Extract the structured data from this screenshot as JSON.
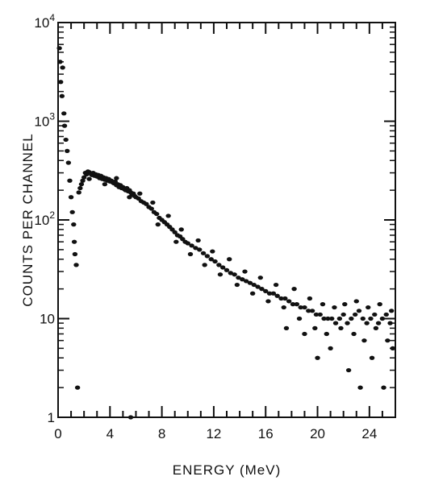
{
  "chart_data": {
    "type": "scatter",
    "title": "",
    "xlabel": "ENERGY (MeV)",
    "ylabel": "COUNTS PER CHANNEL",
    "xlim": [
      0,
      26
    ],
    "ylim": [
      1,
      10000
    ],
    "y_scale": "log",
    "grid": false,
    "legend": "none",
    "x_ticks": [
      0,
      4,
      8,
      12,
      16,
      20,
      24
    ],
    "x_tick_labels": [
      "0",
      "4",
      "8",
      "12",
      "16",
      "20",
      "24"
    ],
    "y_ticks": [
      1,
      10,
      100,
      1000,
      10000
    ],
    "y_tick_labels": [
      {
        "base": "1",
        "exp": ""
      },
      {
        "base": "10",
        "exp": ""
      },
      {
        "base": "10",
        "exp": "2"
      },
      {
        "base": "10",
        "exp": "3"
      },
      {
        "base": "10",
        "exp": "4"
      }
    ],
    "marker_color": "#111111",
    "series": [
      {
        "points": [
          [
            0.1,
            5500
          ],
          [
            0.15,
            4000
          ],
          [
            0.2,
            2500
          ],
          [
            0.3,
            1800
          ],
          [
            0.35,
            3500
          ],
          [
            0.45,
            1200
          ],
          [
            0.5,
            900
          ],
          [
            0.6,
            650
          ],
          [
            0.7,
            500
          ],
          [
            0.8,
            380
          ],
          [
            0.9,
            250
          ],
          [
            1.0,
            170
          ],
          [
            1.1,
            120
          ],
          [
            1.2,
            90
          ],
          [
            1.25,
            60
          ],
          [
            1.3,
            45
          ],
          [
            1.4,
            35
          ],
          [
            1.5,
            2
          ],
          [
            1.6,
            190
          ],
          [
            1.7,
            210
          ],
          [
            1.8,
            230
          ],
          [
            1.9,
            250
          ],
          [
            2.0,
            270
          ],
          [
            2.1,
            300
          ],
          [
            2.2,
            290
          ],
          [
            2.3,
            310
          ],
          [
            2.4,
            305
          ],
          [
            2.5,
            295
          ],
          [
            2.6,
            285
          ],
          [
            2.7,
            300
          ],
          [
            2.8,
            280
          ],
          [
            2.9,
            290
          ],
          [
            3.0,
            275
          ],
          [
            3.1,
            285
          ],
          [
            3.2,
            265
          ],
          [
            3.3,
            280
          ],
          [
            3.4,
            260
          ],
          [
            3.5,
            270
          ],
          [
            3.6,
            255
          ],
          [
            3.7,
            265
          ],
          [
            3.8,
            250
          ],
          [
            3.9,
            260
          ],
          [
            4.0,
            245
          ],
          [
            4.1,
            250
          ],
          [
            4.2,
            240
          ],
          [
            4.3,
            235
          ],
          [
            4.4,
            245
          ],
          [
            4.5,
            225
          ],
          [
            4.6,
            230
          ],
          [
            4.7,
            215
          ],
          [
            4.8,
            225
          ],
          [
            4.9,
            210
          ],
          [
            5.0,
            215
          ],
          [
            5.1,
            205
          ],
          [
            5.2,
            200
          ],
          [
            5.3,
            210
          ],
          [
            5.4,
            195
          ],
          [
            5.5,
            200
          ],
          [
            5.6,
            190
          ],
          [
            5.7,
            180
          ],
          [
            5.8,
            185
          ],
          [
            5.9,
            175
          ],
          [
            6.0,
            170
          ],
          [
            6.2,
            165
          ],
          [
            6.4,
            155
          ],
          [
            6.6,
            150
          ],
          [
            6.8,
            145
          ],
          [
            7.0,
            135
          ],
          [
            7.2,
            130
          ],
          [
            7.4,
            120
          ],
          [
            7.6,
            115
          ],
          [
            7.8,
            105
          ],
          [
            8.0,
            100
          ],
          [
            8.2,
            95
          ],
          [
            8.4,
            90
          ],
          [
            8.6,
            85
          ],
          [
            8.8,
            80
          ],
          [
            9.0,
            75
          ],
          [
            9.2,
            70
          ],
          [
            9.4,
            68
          ],
          [
            9.6,
            64
          ],
          [
            9.8,
            60
          ],
          [
            10.0,
            58
          ],
          [
            10.3,
            55
          ],
          [
            10.6,
            52
          ],
          [
            10.9,
            50
          ],
          [
            11.2,
            46
          ],
          [
            11.5,
            43
          ],
          [
            11.8,
            40
          ],
          [
            12.1,
            38
          ],
          [
            12.4,
            35
          ],
          [
            12.7,
            33
          ],
          [
            13.0,
            31
          ],
          [
            13.3,
            29
          ],
          [
            13.6,
            28
          ],
          [
            13.9,
            26
          ],
          [
            14.2,
            25
          ],
          [
            14.5,
            24
          ],
          [
            14.8,
            23
          ],
          [
            15.1,
            22
          ],
          [
            15.4,
            21
          ],
          [
            15.7,
            20
          ],
          [
            16.0,
            19
          ],
          [
            16.3,
            18
          ],
          [
            16.6,
            18
          ],
          [
            16.9,
            17
          ],
          [
            17.2,
            16
          ],
          [
            17.5,
            16
          ],
          [
            17.8,
            15
          ],
          [
            18.1,
            14
          ],
          [
            18.4,
            14
          ],
          [
            18.7,
            13
          ],
          [
            19.0,
            13
          ],
          [
            19.3,
            12
          ],
          [
            19.6,
            12
          ],
          [
            19.9,
            11
          ],
          [
            20.2,
            11
          ],
          [
            20.5,
            10
          ],
          [
            20.8,
            10
          ],
          [
            21.1,
            10
          ],
          [
            21.4,
            9
          ],
          [
            21.7,
            10
          ],
          [
            22.0,
            11
          ],
          [
            22.3,
            9
          ],
          [
            22.6,
            10
          ],
          [
            22.9,
            11
          ],
          [
            23.2,
            12
          ],
          [
            23.5,
            10
          ],
          [
            23.8,
            9
          ],
          [
            24.1,
            10
          ],
          [
            24.4,
            11
          ],
          [
            24.7,
            9
          ],
          [
            25.0,
            10
          ],
          [
            25.3,
            11
          ],
          [
            25.6,
            9
          ],
          [
            2.4,
            260
          ],
          [
            3.6,
            230
          ],
          [
            4.5,
            265
          ],
          [
            5.5,
            170
          ],
          [
            6.3,
            185
          ],
          [
            7.3,
            150
          ],
          [
            7.7,
            90
          ],
          [
            8.5,
            110
          ],
          [
            9.1,
            60
          ],
          [
            9.5,
            80
          ],
          [
            10.2,
            45
          ],
          [
            10.8,
            62
          ],
          [
            11.3,
            35
          ],
          [
            11.9,
            48
          ],
          [
            12.5,
            28
          ],
          [
            13.2,
            40
          ],
          [
            13.8,
            22
          ],
          [
            14.4,
            30
          ],
          [
            15.0,
            18
          ],
          [
            15.6,
            26
          ],
          [
            16.2,
            15
          ],
          [
            16.8,
            22
          ],
          [
            17.4,
            13
          ],
          [
            17.6,
            8
          ],
          [
            18.2,
            20
          ],
          [
            18.6,
            10
          ],
          [
            19.0,
            7
          ],
          [
            19.4,
            16
          ],
          [
            19.8,
            8
          ],
          [
            20.0,
            4
          ],
          [
            20.4,
            14
          ],
          [
            20.7,
            7
          ],
          [
            21.0,
            5
          ],
          [
            21.3,
            13
          ],
          [
            21.8,
            8
          ],
          [
            22.1,
            14
          ],
          [
            22.4,
            3
          ],
          [
            22.8,
            7
          ],
          [
            23.0,
            15
          ],
          [
            23.3,
            2
          ],
          [
            23.6,
            6
          ],
          [
            23.9,
            13
          ],
          [
            24.2,
            4
          ],
          [
            24.5,
            8
          ],
          [
            24.8,
            14
          ],
          [
            25.1,
            2
          ],
          [
            25.4,
            6
          ],
          [
            25.8,
            5
          ],
          [
            25.7,
            12
          ],
          [
            5.6,
            1
          ]
        ]
      }
    ]
  }
}
